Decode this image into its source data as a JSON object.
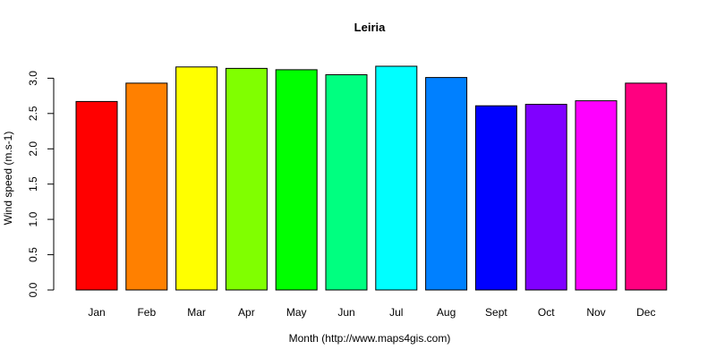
{
  "chart_data": {
    "type": "bar",
    "title": "Leiria",
    "xlabel": "Month (http://www.maps4gis.com)",
    "ylabel": "Wind speed (m.s-1)",
    "categories": [
      "Jan",
      "Feb",
      "Mar",
      "Apr",
      "May",
      "Jun",
      "Jul",
      "Aug",
      "Sept",
      "Oct",
      "Nov",
      "Dec"
    ],
    "values": [
      2.67,
      2.93,
      3.16,
      3.14,
      3.12,
      3.05,
      3.17,
      3.01,
      2.61,
      2.63,
      2.68,
      2.93
    ],
    "colors": [
      "#ff0000",
      "#ff8000",
      "#ffff00",
      "#80ff00",
      "#00ff00",
      "#00ff80",
      "#00ffff",
      "#0080ff",
      "#0000ff",
      "#8000ff",
      "#ff00ff",
      "#ff0080"
    ],
    "ylim": [
      0,
      3.17
    ],
    "yticks": [
      "0.0",
      "0.5",
      "1.0",
      "1.5",
      "2.0",
      "2.5",
      "3.0"
    ],
    "grid": false,
    "legend": "none"
  }
}
